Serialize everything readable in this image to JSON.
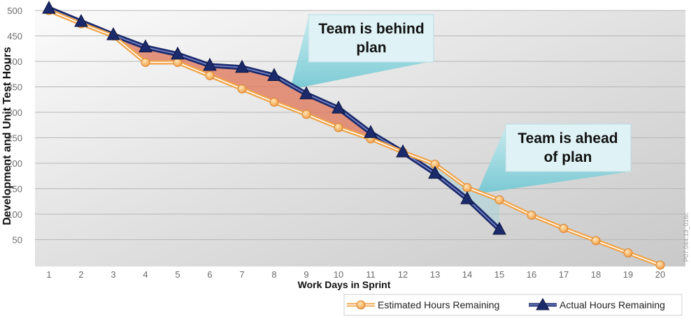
{
  "chart_data": {
    "type": "line",
    "xlabel": "Work Days in Sprint",
    "ylabel": "Development and Unit Test Hours",
    "x": [
      1,
      2,
      3,
      4,
      5,
      6,
      7,
      8,
      9,
      10,
      11,
      12,
      13,
      14,
      15,
      16,
      17,
      18,
      19,
      20
    ],
    "xlim": [
      1,
      20
    ],
    "ylim": [
      0,
      500
    ],
    "yticks": [
      50,
      100,
      150,
      200,
      250,
      300,
      350,
      400,
      450,
      500
    ],
    "grid": true,
    "legend_position": "bottom-right",
    "series": [
      {
        "name": "Estimated Hours Remaining",
        "color": "#f0a347",
        "marker": "circle",
        "x": [
          1,
          2,
          3,
          4,
          5,
          6,
          7,
          8,
          9,
          10,
          11,
          12,
          13,
          14,
          15,
          16,
          17,
          18,
          19,
          20
        ],
        "values": [
          500,
          474,
          450,
          398,
          398,
          372,
          346,
          320,
          296,
          270,
          248,
          222,
          198,
          152,
          128,
          98,
          72,
          48,
          24,
          0
        ]
      },
      {
        "name": "Actual Hours Remaining",
        "color": "#1b2a6b",
        "marker": "triangle",
        "x": [
          1,
          2,
          3,
          4,
          5,
          6,
          7,
          8,
          9,
          10,
          11,
          12,
          13,
          14,
          15
        ],
        "values": [
          504,
          478,
          452,
          428,
          414,
          392,
          388,
          372,
          336,
          308,
          260,
          222,
          180,
          130,
          70
        ]
      }
    ],
    "annotations": [
      {
        "line1": "Team is behind",
        "line2": "plan"
      },
      {
        "line1": "Team is ahead",
        "line2": "of plan"
      }
    ],
    "side_code": "P07.044.13_016c",
    "colors": {
      "behind_fill": "#e07a5f",
      "callout_fill": "#dff2f6",
      "callout_pointer": "#8fd4dd"
    }
  }
}
